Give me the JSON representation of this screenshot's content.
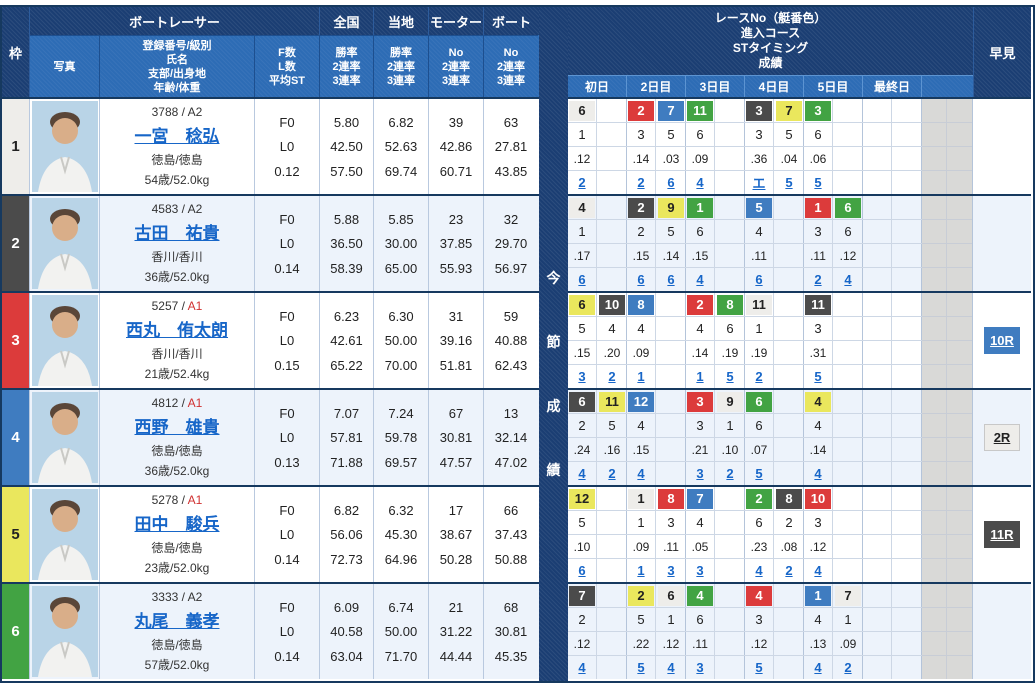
{
  "header": {
    "waku": "枠",
    "photo": "写真",
    "racer_group": "ボートレーサー",
    "racer_info_lines": [
      "登録番号/級別",
      "氏名",
      "支部/出身地",
      "年齢/体重"
    ],
    "fl_lines": [
      "F数",
      "L数",
      "平均ST"
    ],
    "stat_groups": [
      {
        "label": "全国",
        "lines": [
          "勝率",
          "2連率",
          "3連率"
        ]
      },
      {
        "label": "当地",
        "lines": [
          "勝率",
          "2連率",
          "3連率"
        ]
      },
      {
        "label": "モーター",
        "lines": [
          "No",
          "2連率",
          "3連率"
        ]
      },
      {
        "label": "ボート",
        "lines": [
          "No",
          "2連率",
          "3連率"
        ]
      }
    ],
    "race_info_lines": [
      "レースNo（艇番色）",
      "進入コース",
      "STタイミング",
      "成績"
    ],
    "day_labels": [
      "初日",
      "2日目",
      "3日目",
      "4日目",
      "5日目",
      "最終日"
    ],
    "hayami": "早見",
    "mid_label_chars": [
      "今",
      "節",
      "成",
      "績"
    ]
  },
  "theme": {
    "navy": "#1b3e73",
    "sub_blue": "#2d6cb5",
    "link_blue": "#1766c8",
    "row_alt": "#edf3fb",
    "grey_cell": "#d9d9d7",
    "a1_red": "#d03030"
  },
  "boat_colors": {
    "1": {
      "bg": "#eeedea",
      "fg": "#222222",
      "border": "#c8c8c8"
    },
    "2": {
      "bg": "#4b4b4b",
      "fg": "#ffffff",
      "border": "#4b4b4b"
    },
    "3": {
      "bg": "#dc3b3b",
      "fg": "#ffffff",
      "border": "#dc3b3b"
    },
    "4": {
      "bg": "#3f7cc0",
      "fg": "#ffffff",
      "border": "#3f7cc0"
    },
    "5": {
      "bg": "#eae75d",
      "fg": "#222222",
      "border": "#d8d455"
    },
    "6": {
      "bg": "#42a343",
      "fg": "#ffffff",
      "border": "#42a343"
    }
  },
  "racers": [
    {
      "waku": 1,
      "reg": "3788",
      "cls": "A2",
      "a1": false,
      "name": "一宮　稔弘",
      "branch": "徳島/徳島",
      "age_weight": "54歳/52.0kg",
      "f": "F0",
      "l": "L0",
      "st": "0.12",
      "zenkoku": [
        "5.80",
        "42.50",
        "57.50"
      ],
      "touchi": [
        "6.82",
        "52.63",
        "69.74"
      ],
      "motor": [
        "39",
        "42.86",
        "60.71"
      ],
      "boat": [
        "63",
        "27.81",
        "43.85"
      ],
      "days": [
        [
          {
            "race": "6",
            "boat": 1,
            "course": "1",
            "st": ".12",
            "result": "2"
          },
          null
        ],
        [
          {
            "race": "2",
            "boat": 3,
            "course": "3",
            "st": ".14",
            "result": "2"
          },
          {
            "race": "7",
            "boat": 4,
            "course": "5",
            "st": ".03",
            "result": "6"
          }
        ],
        [
          {
            "race": "11",
            "boat": 6,
            "course": "6",
            "st": ".09",
            "result": "4"
          },
          null
        ],
        [
          {
            "race": "3",
            "boat": 2,
            "course": "3",
            "st": ".36",
            "result": "エ"
          },
          {
            "race": "7",
            "boat": 5,
            "course": "5",
            "st": ".04",
            "result": "5"
          }
        ],
        [
          {
            "race": "3",
            "boat": 6,
            "course": "6",
            "st": ".06",
            "result": "5"
          },
          null
        ],
        [
          null,
          null
        ]
      ],
      "hayami": null
    },
    {
      "waku": 2,
      "reg": "4583",
      "cls": "A2",
      "a1": false,
      "name": "古田　祐貴",
      "branch": "香川/香川",
      "age_weight": "36歳/52.0kg",
      "f": "F0",
      "l": "L0",
      "st": "0.14",
      "zenkoku": [
        "5.88",
        "36.50",
        "58.39"
      ],
      "touchi": [
        "5.85",
        "30.00",
        "65.00"
      ],
      "motor": [
        "23",
        "37.85",
        "55.93"
      ],
      "boat": [
        "32",
        "29.70",
        "56.97"
      ],
      "days": [
        [
          {
            "race": "4",
            "boat": 1,
            "course": "1",
            "st": ".17",
            "result": "6"
          },
          null
        ],
        [
          {
            "race": "2",
            "boat": 2,
            "course": "2",
            "st": ".15",
            "result": "6"
          },
          {
            "race": "9",
            "boat": 5,
            "course": "5",
            "st": ".14",
            "result": "6"
          }
        ],
        [
          {
            "race": "1",
            "boat": 6,
            "course": "6",
            "st": ".15",
            "result": "4"
          },
          null
        ],
        [
          {
            "race": "5",
            "boat": 4,
            "course": "4",
            "st": ".11",
            "result": "6"
          },
          null
        ],
        [
          {
            "race": "1",
            "boat": 3,
            "course": "3",
            "st": ".11",
            "result": "2"
          },
          {
            "race": "6",
            "boat": 6,
            "course": "6",
            "st": ".12",
            "result": "4"
          }
        ],
        [
          null,
          null
        ]
      ],
      "hayami": null
    },
    {
      "waku": 3,
      "reg": "5257",
      "cls": "A1",
      "a1": true,
      "name": "西丸　侑太朗",
      "branch": "香川/香川",
      "age_weight": "21歳/52.4kg",
      "f": "F0",
      "l": "L0",
      "st": "0.15",
      "zenkoku": [
        "6.23",
        "42.61",
        "65.22"
      ],
      "touchi": [
        "6.30",
        "50.00",
        "70.00"
      ],
      "motor": [
        "31",
        "39.16",
        "51.81"
      ],
      "boat": [
        "59",
        "40.88",
        "62.43"
      ],
      "days": [
        [
          {
            "race": "6",
            "boat": 5,
            "course": "5",
            "st": ".15",
            "result": "3"
          },
          {
            "race": "10",
            "boat": 2,
            "course": "4",
            "st": ".20",
            "result": "2"
          }
        ],
        [
          {
            "race": "8",
            "boat": 4,
            "course": "4",
            "st": ".09",
            "result": "1"
          },
          null
        ],
        [
          {
            "race": "2",
            "boat": 3,
            "course": "4",
            "st": ".14",
            "result": "1"
          },
          {
            "race": "8",
            "boat": 6,
            "course": "6",
            "st": ".19",
            "result": "5"
          }
        ],
        [
          {
            "race": "11",
            "boat": 1,
            "course": "1",
            "st": ".19",
            "result": "2"
          },
          null
        ],
        [
          {
            "race": "11",
            "boat": 2,
            "course": "3",
            "st": ".31",
            "result": "5"
          },
          null
        ],
        [
          null,
          null
        ]
      ],
      "hayami": {
        "label": "10R",
        "boat": 4
      }
    },
    {
      "waku": 4,
      "reg": "4812",
      "cls": "A1",
      "a1": true,
      "name": "西野　雄貴",
      "branch": "徳島/徳島",
      "age_weight": "36歳/52.0kg",
      "f": "F0",
      "l": "L0",
      "st": "0.13",
      "zenkoku": [
        "7.07",
        "57.81",
        "71.88"
      ],
      "touchi": [
        "7.24",
        "59.78",
        "69.57"
      ],
      "motor": [
        "67",
        "30.81",
        "47.57"
      ],
      "boat": [
        "13",
        "32.14",
        "47.02"
      ],
      "days": [
        [
          {
            "race": "6",
            "boat": 2,
            "course": "2",
            "st": ".24",
            "result": "4"
          },
          {
            "race": "11",
            "boat": 5,
            "course": "5",
            "st": ".16",
            "result": "2"
          }
        ],
        [
          {
            "race": "12",
            "boat": 4,
            "course": "4",
            "st": ".15",
            "result": "4"
          },
          null
        ],
        [
          {
            "race": "3",
            "boat": 3,
            "course": "3",
            "st": ".21",
            "result": "3"
          },
          {
            "race": "9",
            "boat": 1,
            "course": "1",
            "st": ".10",
            "result": "2"
          }
        ],
        [
          {
            "race": "6",
            "boat": 6,
            "course": "6",
            "st": ".07",
            "result": "5"
          },
          null
        ],
        [
          {
            "race": "4",
            "boat": 5,
            "course": "4",
            "st": ".14",
            "result": "4"
          },
          null
        ],
        [
          null,
          null
        ]
      ],
      "hayami": {
        "label": "2R",
        "boat": 1
      }
    },
    {
      "waku": 5,
      "reg": "5278",
      "cls": "A1",
      "a1": true,
      "name": "田中　駿兵",
      "branch": "徳島/徳島",
      "age_weight": "23歳/52.0kg",
      "f": "F0",
      "l": "L0",
      "st": "0.14",
      "zenkoku": [
        "6.82",
        "56.06",
        "72.73"
      ],
      "touchi": [
        "6.32",
        "45.30",
        "64.96"
      ],
      "motor": [
        "17",
        "38.67",
        "50.28"
      ],
      "boat": [
        "66",
        "37.43",
        "50.88"
      ],
      "days": [
        [
          {
            "race": "12",
            "boat": 5,
            "course": "5",
            "st": ".10",
            "result": "6"
          },
          null
        ],
        [
          {
            "race": "1",
            "boat": 1,
            "course": "1",
            "st": ".09",
            "result": "1"
          },
          {
            "race": "8",
            "boat": 3,
            "course": "3",
            "st": ".11",
            "result": "3"
          }
        ],
        [
          {
            "race": "7",
            "boat": 4,
            "course": "4",
            "st": ".05",
            "result": "3"
          },
          null
        ],
        [
          {
            "race": "2",
            "boat": 6,
            "course": "6",
            "st": ".23",
            "result": "4"
          },
          {
            "race": "8",
            "boat": 2,
            "course": "2",
            "st": ".08",
            "result": "2"
          }
        ],
        [
          {
            "race": "10",
            "boat": 3,
            "course": "3",
            "st": ".12",
            "result": "4"
          },
          null
        ],
        [
          null,
          null
        ]
      ],
      "hayami": {
        "label": "11R",
        "boat": 2
      }
    },
    {
      "waku": 6,
      "reg": "3333",
      "cls": "A2",
      "a1": false,
      "name": "丸尾　義孝",
      "branch": "徳島/徳島",
      "age_weight": "57歳/52.0kg",
      "f": "F0",
      "l": "L0",
      "st": "0.14",
      "zenkoku": [
        "6.09",
        "40.58",
        "63.04"
      ],
      "touchi": [
        "6.74",
        "50.00",
        "71.70"
      ],
      "motor": [
        "21",
        "31.22",
        "44.44"
      ],
      "boat": [
        "68",
        "30.81",
        "45.35"
      ],
      "days": [
        [
          {
            "race": "7",
            "boat": 2,
            "course": "2",
            "st": ".12",
            "result": "4"
          },
          null
        ],
        [
          {
            "race": "2",
            "boat": 5,
            "course": "5",
            "st": ".22",
            "result": "5"
          },
          {
            "race": "6",
            "boat": 1,
            "course": "1",
            "st": ".12",
            "result": "4"
          }
        ],
        [
          {
            "race": "4",
            "boat": 6,
            "course": "6",
            "st": ".11",
            "result": "3"
          },
          null
        ],
        [
          {
            "race": "4",
            "boat": 3,
            "course": "3",
            "st": ".12",
            "result": "5"
          },
          null
        ],
        [
          {
            "race": "1",
            "boat": 4,
            "course": "4",
            "st": ".13",
            "result": "4"
          },
          {
            "race": "7",
            "boat": 1,
            "course": "1",
            "st": ".09",
            "result": "2"
          }
        ],
        [
          null,
          null
        ]
      ],
      "hayami": null
    }
  ]
}
